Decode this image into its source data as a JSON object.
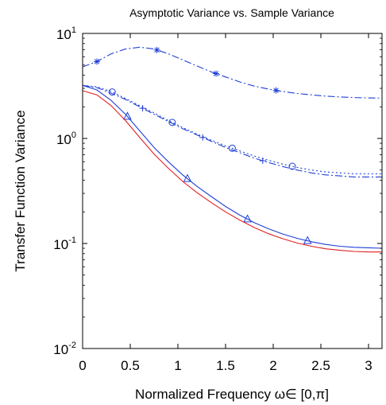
{
  "chart_data": {
    "type": "line",
    "title": "Asymptotic Variance vs. Sample Variance",
    "xlabel": "Normalized Frequency ω∈ [0,π]",
    "ylabel": "Transfer Function Variance",
    "xlim": [
      0,
      3.14159
    ],
    "ylim": [
      0.01,
      10
    ],
    "y_scale": "log",
    "x_ticks": [
      0,
      0.5,
      1,
      1.5,
      2,
      2.5,
      3
    ],
    "x_tick_labels": [
      "0",
      "0.5",
      "1",
      "1.5",
      "2",
      "2.5",
      "3"
    ],
    "y_ticks": [
      0.01,
      0.1,
      1,
      10
    ],
    "y_tick_bases": [
      "10",
      "10",
      "10",
      "10"
    ],
    "y_tick_exponents": [
      "-2",
      "-1",
      "0",
      "1"
    ],
    "grid": false,
    "series": [
      {
        "color": "#1f3fd6",
        "line_style": "dash-dot",
        "marker": "asterisk",
        "x": [
          0,
          0.15,
          0.3,
          0.45,
          0.6,
          0.75,
          0.9,
          1.05,
          1.2,
          1.35,
          1.5,
          1.65,
          1.8,
          1.95,
          2.1,
          2.25,
          2.4,
          2.55,
          2.7,
          2.85,
          3.0,
          3.14
        ],
        "y": [
          4.8,
          5.4,
          6.4,
          7.1,
          7.4,
          7.1,
          6.4,
          5.6,
          4.9,
          4.3,
          3.85,
          3.45,
          3.15,
          2.95,
          2.8,
          2.68,
          2.6,
          2.53,
          2.48,
          2.45,
          2.43,
          2.42
        ],
        "marker_x": [
          0.15,
          0.78,
          1.4,
          2.03
        ]
      },
      {
        "color": "#1f3fd6",
        "line_style": "dash-dot",
        "marker": "plus",
        "x": [
          0,
          0.15,
          0.3,
          0.45,
          0.6,
          0.75,
          0.9,
          1.05,
          1.2,
          1.35,
          1.5,
          1.65,
          1.8,
          1.95,
          2.1,
          2.25,
          2.4,
          2.55,
          2.7,
          2.85,
          3.0,
          3.14
        ],
        "y": [
          3.2,
          3.05,
          2.7,
          2.35,
          2.0,
          1.7,
          1.45,
          1.24,
          1.08,
          0.94,
          0.82,
          0.73,
          0.65,
          0.59,
          0.54,
          0.5,
          0.47,
          0.45,
          0.44,
          0.43,
          0.43,
          0.43
        ],
        "marker_x": [
          0.63,
          1.26,
          1.89
        ]
      },
      {
        "color": "#1f3fd6",
        "line_style": "dotted",
        "marker": "circle",
        "x": [
          0,
          0.15,
          0.3,
          0.45,
          0.6,
          0.75,
          0.9,
          1.05,
          1.2,
          1.35,
          1.5,
          1.65,
          1.8,
          1.95,
          2.1,
          2.25,
          2.4,
          2.55,
          2.7,
          2.85,
          3.0,
          3.14
        ],
        "y": [
          3.2,
          3.1,
          2.8,
          2.4,
          2.05,
          1.75,
          1.48,
          1.27,
          1.1,
          0.96,
          0.85,
          0.76,
          0.68,
          0.62,
          0.57,
          0.53,
          0.5,
          0.48,
          0.47,
          0.46,
          0.46,
          0.46
        ],
        "marker_x": [
          0.31,
          0.94,
          1.57,
          2.2
        ]
      },
      {
        "color": "#1f3fd6",
        "line_style": "solid",
        "marker": "triangle",
        "x": [
          0,
          0.15,
          0.3,
          0.45,
          0.6,
          0.75,
          0.9,
          1.05,
          1.2,
          1.35,
          1.5,
          1.65,
          1.8,
          1.95,
          2.1,
          2.25,
          2.4,
          2.55,
          2.7,
          2.85,
          3.0,
          3.14
        ],
        "y": [
          3.2,
          2.9,
          2.3,
          1.7,
          1.18,
          0.82,
          0.6,
          0.45,
          0.35,
          0.28,
          0.225,
          0.186,
          0.158,
          0.138,
          0.123,
          0.112,
          0.104,
          0.098,
          0.094,
          0.092,
          0.091,
          0.09
        ],
        "marker_x": [
          0.47,
          1.1,
          1.73,
          2.36
        ]
      },
      {
        "color": "#e02020",
        "line_style": "solid",
        "marker": "none",
        "x": [
          0,
          0.15,
          0.3,
          0.45,
          0.6,
          0.75,
          0.9,
          1.05,
          1.2,
          1.35,
          1.5,
          1.65,
          1.8,
          1.95,
          2.1,
          2.25,
          2.4,
          2.55,
          2.7,
          2.85,
          3.0,
          3.14
        ],
        "y": [
          2.85,
          2.6,
          2.05,
          1.48,
          1.02,
          0.71,
          0.52,
          0.39,
          0.305,
          0.245,
          0.2,
          0.167,
          0.142,
          0.124,
          0.111,
          0.101,
          0.094,
          0.089,
          0.086,
          0.084,
          0.083,
          0.083
        ],
        "marker_x": []
      }
    ]
  }
}
